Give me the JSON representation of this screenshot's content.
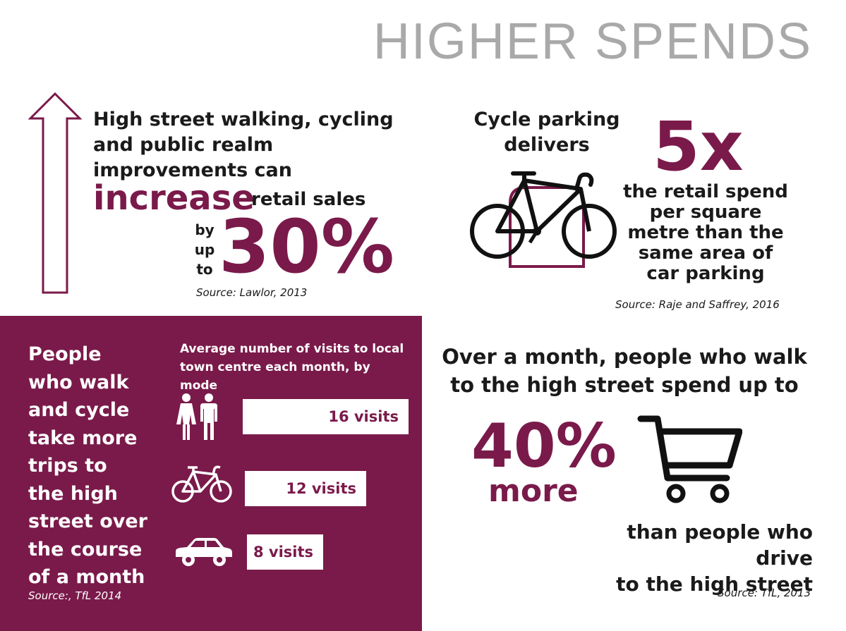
{
  "title": "HIGHER SPENDS",
  "section1": {
    "text": "High street walking, cycling and public realm improvements can",
    "line1": "High street walking, cycling",
    "line2": "and public realm",
    "line3": "improvements can",
    "increase": "increase",
    "retail_sales": "retail sales",
    "by": "by",
    "up": "up",
    "to": "to",
    "percent": "30%",
    "source": "Source: Lawlor, 2013"
  },
  "section2": {
    "line1": "Cycle parking",
    "line2": "delivers",
    "multiplier": "5x",
    "desc1": "the retail spend",
    "desc2": "per square",
    "desc3": "metre than the",
    "desc4": "same area of",
    "desc5": "car parking",
    "source": "Source: Raje and Saffrey, 2016"
  },
  "section3": {
    "lines": [
      "People",
      "who walk",
      "and cycle",
      "take more",
      "trips to",
      "the high",
      "street over",
      "the course",
      "of a month"
    ],
    "chart_title_1": "Average number of visits to local",
    "chart_title_2": "town centre each month, by mode",
    "source": "Source:, TfL 2014"
  },
  "chart_data": {
    "type": "bar",
    "title": "Average number of visits to local town centre each month, by mode",
    "categories": [
      "walk",
      "cycle",
      "car"
    ],
    "values": [
      16,
      12,
      8
    ],
    "labels": [
      "16 visits",
      "12 visits",
      "8 visits"
    ]
  },
  "section4": {
    "line1": "Over a month, people who walk",
    "line2": "to the high street spend up to",
    "percent": "40%",
    "more": "more",
    "than1": "than people who drive",
    "than2": "to the high street",
    "source": "Source: TfL, 2013"
  },
  "colors": {
    "accent": "#7a1a4a",
    "title": "#a9a9a9"
  }
}
